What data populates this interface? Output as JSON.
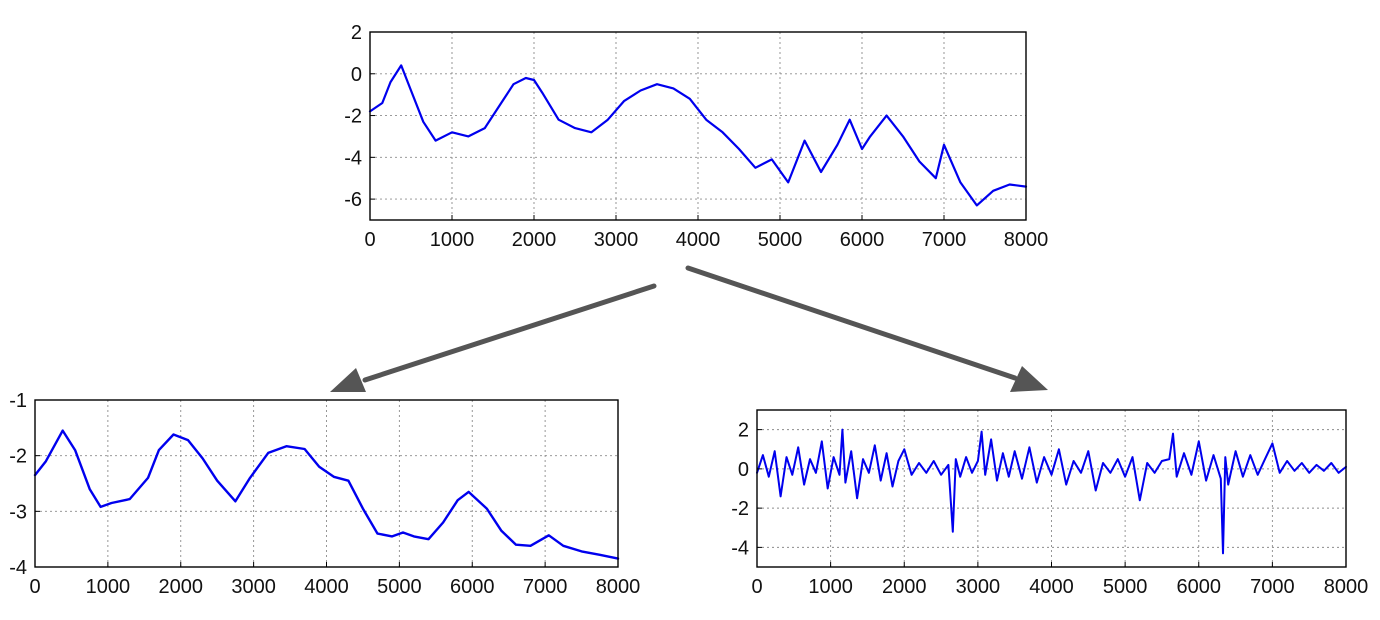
{
  "colors": {
    "series": "#0000ee",
    "arrow": "#555555"
  },
  "chart_data": [
    {
      "id": "original",
      "type": "line",
      "title": "",
      "xlabel": "",
      "ylabel": "",
      "xlim": [
        0,
        8000
      ],
      "ylim": [
        -7,
        2
      ],
      "xticks": [
        0,
        1000,
        2000,
        3000,
        4000,
        5000,
        6000,
        7000,
        8000
      ],
      "yticks": [
        2,
        0,
        -2,
        -4,
        -6
      ],
      "grid": true,
      "series": [
        {
          "x": [
            0,
            150,
            250,
            380,
            500,
            650,
            800,
            1000,
            1200,
            1400,
            1600,
            1750,
            1900,
            2000,
            2100,
            2300,
            2500,
            2700,
            2900,
            3100,
            3300,
            3500,
            3700,
            3900,
            4100,
            4300,
            4500,
            4700,
            4900,
            5100,
            5300,
            5500,
            5700,
            5850,
            6000,
            6100,
            6300,
            6500,
            6700,
            6900,
            7000,
            7200,
            7400,
            7600,
            7800,
            8000
          ],
          "values": [
            -1.8,
            -1.4,
            -0.4,
            0.4,
            -0.8,
            -2.3,
            -3.2,
            -2.8,
            -3.0,
            -2.6,
            -1.4,
            -0.5,
            -0.2,
            -0.3,
            -0.9,
            -2.2,
            -2.6,
            -2.8,
            -2.2,
            -1.3,
            -0.8,
            -0.5,
            -0.7,
            -1.2,
            -2.2,
            -2.8,
            -3.6,
            -4.5,
            -4.1,
            -5.2,
            -3.2,
            -4.7,
            -3.4,
            -2.2,
            -3.6,
            -3.0,
            -2.0,
            -3.0,
            -4.2,
            -5.0,
            -3.4,
            -5.2,
            -6.3,
            -5.6,
            -5.3,
            -5.4
          ]
        }
      ]
    },
    {
      "id": "smooth",
      "type": "line",
      "title": "",
      "xlabel": "",
      "ylabel": "",
      "xlim": [
        0,
        8000
      ],
      "ylim": [
        -4,
        -1
      ],
      "xticks": [
        0,
        1000,
        2000,
        3000,
        4000,
        5000,
        6000,
        7000,
        8000
      ],
      "yticks": [
        -1,
        -2,
        -3,
        -4
      ],
      "grid": true,
      "series": [
        {
          "x": [
            0,
            150,
            380,
            550,
            750,
            900,
            1050,
            1300,
            1550,
            1700,
            1900,
            2100,
            2300,
            2500,
            2750,
            2950,
            3200,
            3450,
            3700,
            3900,
            4100,
            4300,
            4500,
            4700,
            4900,
            5050,
            5200,
            5400,
            5600,
            5800,
            5950,
            6200,
            6400,
            6600,
            6800,
            7050,
            7250,
            7500,
            7750,
            8000
          ],
          "values": [
            -2.35,
            -2.1,
            -1.55,
            -1.9,
            -2.6,
            -2.92,
            -2.85,
            -2.78,
            -2.4,
            -1.9,
            -1.62,
            -1.72,
            -2.05,
            -2.45,
            -2.82,
            -2.4,
            -1.95,
            -1.83,
            -1.88,
            -2.2,
            -2.38,
            -2.45,
            -2.95,
            -3.4,
            -3.45,
            -3.38,
            -3.45,
            -3.5,
            -3.2,
            -2.8,
            -2.65,
            -2.95,
            -3.35,
            -3.6,
            -3.62,
            -3.43,
            -3.62,
            -3.72,
            -3.78,
            -3.85
          ]
        }
      ]
    },
    {
      "id": "residual",
      "type": "line",
      "title": "",
      "xlabel": "",
      "ylabel": "",
      "xlim": [
        0,
        8000
      ],
      "ylim": [
        -5,
        3
      ],
      "xticks": [
        0,
        1000,
        2000,
        3000,
        4000,
        5000,
        6000,
        7000,
        8000
      ],
      "yticks": [
        2,
        0,
        -2,
        -4
      ],
      "grid": true,
      "series": [
        {
          "x": [
            0,
            80,
            160,
            240,
            320,
            400,
            480,
            560,
            640,
            720,
            800,
            880,
            960,
            1040,
            1120,
            1160,
            1200,
            1280,
            1360,
            1440,
            1520,
            1600,
            1680,
            1760,
            1840,
            1920,
            2000,
            2100,
            2200,
            2300,
            2400,
            2500,
            2600,
            2660,
            2700,
            2760,
            2840,
            2920,
            3000,
            3050,
            3100,
            3180,
            3260,
            3340,
            3420,
            3500,
            3600,
            3700,
            3800,
            3900,
            4000,
            4100,
            4200,
            4300,
            4400,
            4500,
            4600,
            4700,
            4800,
            4900,
            5000,
            5100,
            5200,
            5300,
            5400,
            5500,
            5600,
            5650,
            5700,
            5800,
            5900,
            6000,
            6100,
            6200,
            6300,
            6330,
            6360,
            6400,
            6500,
            6600,
            6700,
            6800,
            6900,
            7000,
            7100,
            7200,
            7300,
            7400,
            7500,
            7600,
            7700,
            7800,
            7900,
            8000
          ],
          "values": [
            -0.2,
            0.7,
            -0.4,
            0.9,
            -1.4,
            0.6,
            -0.3,
            1.1,
            -0.8,
            0.5,
            -0.2,
            1.4,
            -1.0,
            0.6,
            -0.3,
            2.0,
            -0.7,
            0.9,
            -1.5,
            0.5,
            -0.2,
            1.2,
            -0.6,
            0.8,
            -0.9,
            0.4,
            1.0,
            -0.3,
            0.3,
            -0.2,
            0.4,
            -0.3,
            0.2,
            -3.2,
            0.5,
            -0.4,
            0.6,
            -0.2,
            0.4,
            1.9,
            -0.3,
            1.5,
            -0.6,
            0.8,
            -0.4,
            0.9,
            -0.5,
            1.1,
            -0.7,
            0.6,
            -0.3,
            1.0,
            -0.8,
            0.4,
            -0.2,
            0.9,
            -1.1,
            0.3,
            -0.2,
            0.5,
            -0.4,
            0.6,
            -1.6,
            0.3,
            -0.2,
            0.4,
            0.5,
            1.8,
            -0.4,
            0.8,
            -0.3,
            1.4,
            -0.6,
            0.7,
            -0.5,
            -4.3,
            0.6,
            -0.8,
            0.9,
            -0.4,
            0.7,
            -0.3,
            0.5,
            1.3,
            -0.2,
            0.4,
            -0.1,
            0.3,
            -0.2,
            0.2,
            -0.1,
            0.3,
            -0.2,
            0.1
          ]
        }
      ]
    }
  ]
}
